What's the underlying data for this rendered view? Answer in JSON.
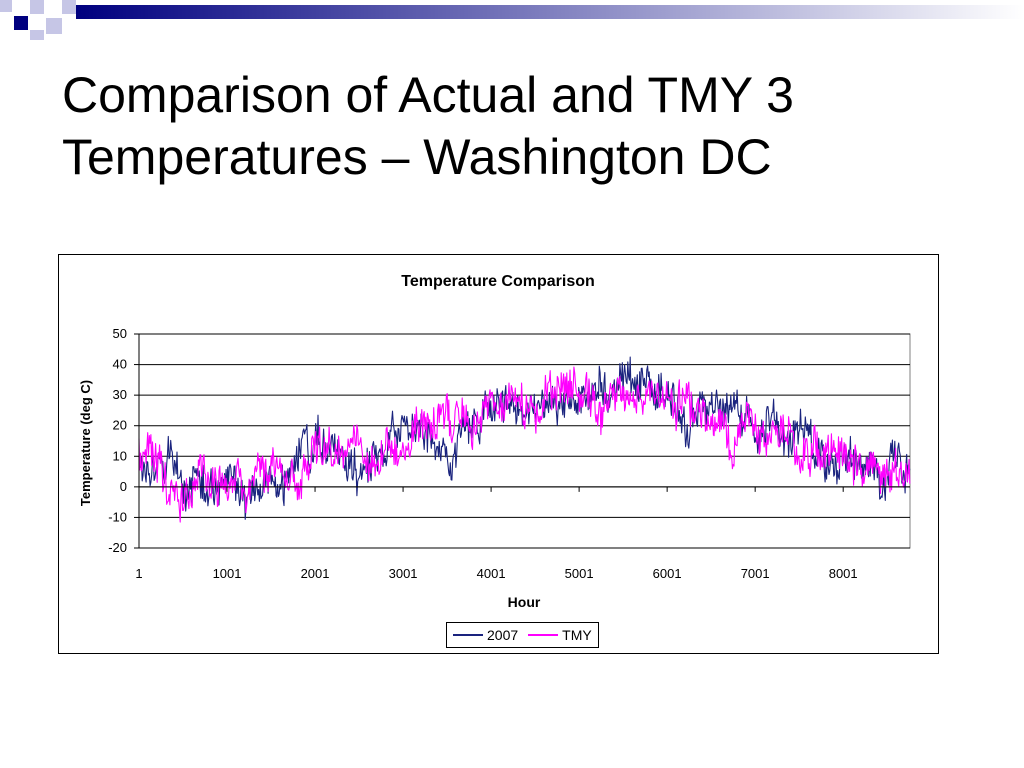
{
  "slide": {
    "title": "Comparison of Actual and TMY 3\nTemperatures – Washington DC"
  },
  "colors": {
    "deco_navy": "#00007f",
    "deco_light": "#c6c6e6",
    "series_2007": "#1a237e",
    "series_tmy": "#ff00ff"
  },
  "chart_data": {
    "type": "line",
    "title": "Temperature Comparison",
    "xlabel": "Hour",
    "ylabel": "Temperature (deg C)",
    "xlim": [
      1,
      8760
    ],
    "ylim": [
      -20,
      50
    ],
    "x_ticks": [
      "1",
      "1001",
      "2001",
      "3001",
      "4001",
      "5001",
      "6001",
      "7001",
      "8001"
    ],
    "y_ticks": [
      "50",
      "40",
      "30",
      "20",
      "10",
      "0",
      "-10",
      "-20"
    ],
    "grid": "horizontal",
    "legend_position": "bottom",
    "series": [
      {
        "name": "2007",
        "color": "#1a237e",
        "x": [
          1,
          250,
          500,
          750,
          1000,
          1250,
          1500,
          1750,
          2000,
          2250,
          2500,
          2750,
          3000,
          3250,
          3500,
          3750,
          4000,
          4250,
          4500,
          4750,
          5000,
          5250,
          5500,
          5750,
          6000,
          6250,
          6500,
          6750,
          7000,
          7250,
          7500,
          7750,
          8000,
          8250,
          8500,
          8760
        ],
        "y": [
          8,
          12,
          4,
          2,
          0,
          -4,
          2,
          6,
          14,
          12,
          4,
          10,
          18,
          16,
          14,
          19,
          24,
          26,
          27,
          28,
          27,
          30,
          32,
          28,
          27,
          25,
          24,
          27,
          24,
          19,
          20,
          14,
          8,
          6,
          4,
          7
        ]
      },
      {
        "name": "TMY",
        "color": "#ff00ff",
        "x": [
          1,
          250,
          500,
          750,
          1000,
          1250,
          1500,
          1750,
          2000,
          2250,
          2500,
          2750,
          3000,
          3250,
          3500,
          3750,
          4000,
          4250,
          4500,
          4750,
          5000,
          5250,
          5500,
          5750,
          6000,
          6250,
          6500,
          6750,
          7000,
          7250,
          7500,
          7750,
          8000,
          8250,
          8500,
          8760
        ],
        "y": [
          14,
          6,
          -2,
          2,
          -4,
          4,
          8,
          2,
          10,
          12,
          16,
          8,
          14,
          20,
          24,
          18,
          26,
          28,
          24,
          30,
          28,
          29,
          30,
          27,
          26,
          24,
          18,
          16,
          20,
          16,
          14,
          12,
          10,
          8,
          6,
          4
        ]
      }
    ]
  }
}
